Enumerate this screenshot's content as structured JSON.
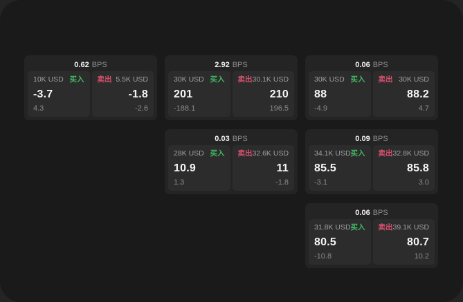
{
  "colors": {
    "backdrop": "#242424",
    "window_bg": "#1a1a1a",
    "card_bg": "#242424",
    "panel_bg": "#2c2c2c",
    "buy_accent": "#42b863",
    "sell_accent": "#d5506e",
    "primary_text": "#f5f5f5",
    "muted_text": "#8a8a8a"
  },
  "labels": {
    "bps_unit": "BPS",
    "buy": "买入",
    "sell": "卖出"
  },
  "cards": [
    {
      "bps": "0.62",
      "buy": {
        "amount": "10K USD",
        "price": "-3.7",
        "delta": "4.3"
      },
      "sell": {
        "amount": "5.5K USD",
        "price": "-1.8",
        "delta": "-2.6"
      }
    },
    {
      "bps": "2.92",
      "buy": {
        "amount": "30K USD",
        "price": "201",
        "delta": "-188.1"
      },
      "sell": {
        "amount": "30.1K USD",
        "price": "210",
        "delta": "196.5"
      }
    },
    {
      "bps": "0.06",
      "buy": {
        "amount": "30K USD",
        "price": "88",
        "delta": "-4.9"
      },
      "sell": {
        "amount": "30K USD",
        "price": "88.2",
        "delta": "4.7"
      }
    },
    {
      "bps": "0.03",
      "buy": {
        "amount": "28K USD",
        "price": "10.9",
        "delta": "1.3"
      },
      "sell": {
        "amount": "32.6K USD",
        "price": "11",
        "delta": "-1.8"
      }
    },
    {
      "bps": "0.09",
      "buy": {
        "amount": "34.1K USD",
        "price": "85.5",
        "delta": "-3.1"
      },
      "sell": {
        "amount": "32.8K USD",
        "price": "85.8",
        "delta": "3.0"
      }
    },
    {
      "bps": "0.06",
      "buy": {
        "amount": "31.8K USD",
        "price": "80.5",
        "delta": "-10.8"
      },
      "sell": {
        "amount": "39.1K USD",
        "price": "80.7",
        "delta": "10.2"
      }
    }
  ]
}
